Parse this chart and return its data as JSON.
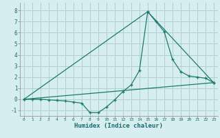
{
  "xlabel": "Humidex (Indice chaleur)",
  "bg_color": "#d6eef0",
  "grid_color": "#b0cdd0",
  "line_color": "#1a7a6e",
  "xlim": [
    -0.5,
    23.5
  ],
  "ylim": [
    -1.5,
    8.7
  ],
  "xticks": [
    0,
    1,
    2,
    3,
    4,
    5,
    6,
    7,
    8,
    9,
    10,
    11,
    12,
    13,
    14,
    15,
    16,
    17,
    18,
    19,
    20,
    21,
    22,
    23
  ],
  "yticks": [
    -1,
    0,
    1,
    2,
    3,
    4,
    5,
    6,
    7,
    8
  ],
  "series": [
    {
      "x": [
        0,
        1,
        2,
        3,
        4,
        5,
        6,
        7,
        8,
        9,
        10,
        11,
        12,
        13,
        14,
        15,
        16,
        17,
        18,
        19,
        20,
        21,
        22,
        23
      ],
      "y": [
        0,
        0,
        0,
        -0.05,
        -0.1,
        -0.15,
        -0.25,
        -0.35,
        -1.2,
        -1.2,
        -0.7,
        -0.05,
        0.7,
        1.3,
        2.6,
        7.9,
        7.0,
        6.1,
        3.6,
        2.5,
        2.1,
        2.0,
        1.9,
        1.5
      ]
    },
    {
      "x": [
        0,
        23
      ],
      "y": [
        0,
        1.5
      ]
    },
    {
      "x": [
        0,
        15,
        23
      ],
      "y": [
        0,
        7.9,
        1.5
      ]
    }
  ]
}
